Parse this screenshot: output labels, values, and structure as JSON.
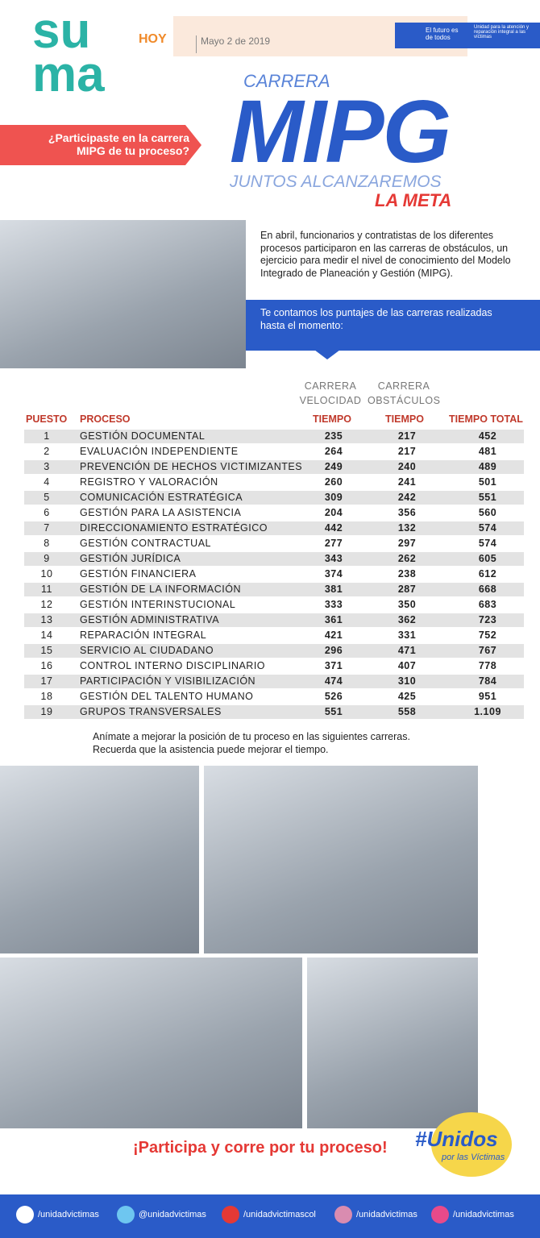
{
  "header": {
    "logo_top": "su",
    "logo_bottom": "ma",
    "logo_plus": "HOY",
    "date": "Mayo 2 de 2019",
    "gov_slogan": "El futuro es de todos",
    "unit_name": "Unidad para la atención y reparación integral a las víctimas"
  },
  "banner": {
    "question": "¿Participaste en la carrera MIPG de tu proceso?"
  },
  "hero": {
    "top": "CARRERA",
    "title": "MIPG",
    "subtitle": "JUNTOS ALCANZAREMOS",
    "goal": "LA META"
  },
  "intro": {
    "text": "En abril, funcionarios y contratistas de los diferentes procesos participaron en las carreras de obstáculos, un ejercicio para medir el nivel de conocimiento del Modelo Integrado de Planeación y Gestión (MIPG).",
    "callout": "Te contamos los puntajes de las carreras realizadas hasta el momento:"
  },
  "table": {
    "group_headers": [
      "CARRERA VELOCIDAD",
      "CARRERA OBSTÁCULOS"
    ],
    "headers": [
      "PUESTO",
      "PROCESO",
      "TIEMPO",
      "TIEMPO",
      "TIEMPO TOTAL"
    ],
    "rows": [
      [
        1,
        "GESTIÓN DOCUMENTAL",
        235,
        217,
        452
      ],
      [
        2,
        "EVALUACIÓN INDEPENDIENTE",
        264,
        217,
        481
      ],
      [
        3,
        "PREVENCIÓN DE HECHOS VICTIMIZANTES",
        249,
        240,
        489
      ],
      [
        4,
        "REGISTRO Y VALORACIÓN",
        260,
        241,
        501
      ],
      [
        5,
        "COMUNICACIÓN ESTRATÉGICA",
        309,
        242,
        551
      ],
      [
        6,
        "GESTIÓN PARA LA ASISTENCIA",
        204,
        356,
        560
      ],
      [
        7,
        "DIRECCIONAMIENTO ESTRATÉGICO",
        442,
        132,
        574
      ],
      [
        8,
        "GESTIÓN CONTRACTUAL",
        277,
        297,
        574
      ],
      [
        9,
        "GESTIÓN JURÍDICA",
        343,
        262,
        605
      ],
      [
        10,
        "GESTIÓN FINANCIERA",
        374,
        238,
        612
      ],
      [
        11,
        "GESTIÓN DE LA INFORMACIÓN",
        381,
        287,
        668
      ],
      [
        12,
        "GESTIÓN INTERINSTUCIONAL",
        333,
        350,
        683
      ],
      [
        13,
        "GESTIÓN ADMINISTRATIVA",
        361,
        362,
        723
      ],
      [
        14,
        "REPARACIÓN INTEGRAL",
        421,
        331,
        752
      ],
      [
        15,
        "SERVICIO AL CIUDADANO",
        296,
        471,
        767
      ],
      [
        16,
        "CONTROL INTERNO DISCIPLINARIO",
        371,
        407,
        778
      ],
      [
        17,
        "PARTICIPACIÓN Y VISIBILIZACIÓN",
        474,
        310,
        784
      ],
      [
        18,
        "GESTIÓN DEL TALENTO HUMANO",
        526,
        425,
        951
      ],
      [
        19,
        "GRUPOS TRANSVERSALES",
        551,
        558,
        "1.109"
      ]
    ]
  },
  "outro": {
    "text": "Anímate a mejorar la posición de tu proceso en las siguientes carreras. Recuerda que la asistencia puede mejorar el tiempo.",
    "slogan": "¡Participa y corre por tu proceso!",
    "hashtag": "#Unidos",
    "hashtag_sub": "por las Víctimas"
  },
  "social": [
    "/unidadvictimas",
    "@unidadvictimas",
    "/unidadvictimascol",
    "/unidadvictimas",
    "/unidadvictimas"
  ]
}
